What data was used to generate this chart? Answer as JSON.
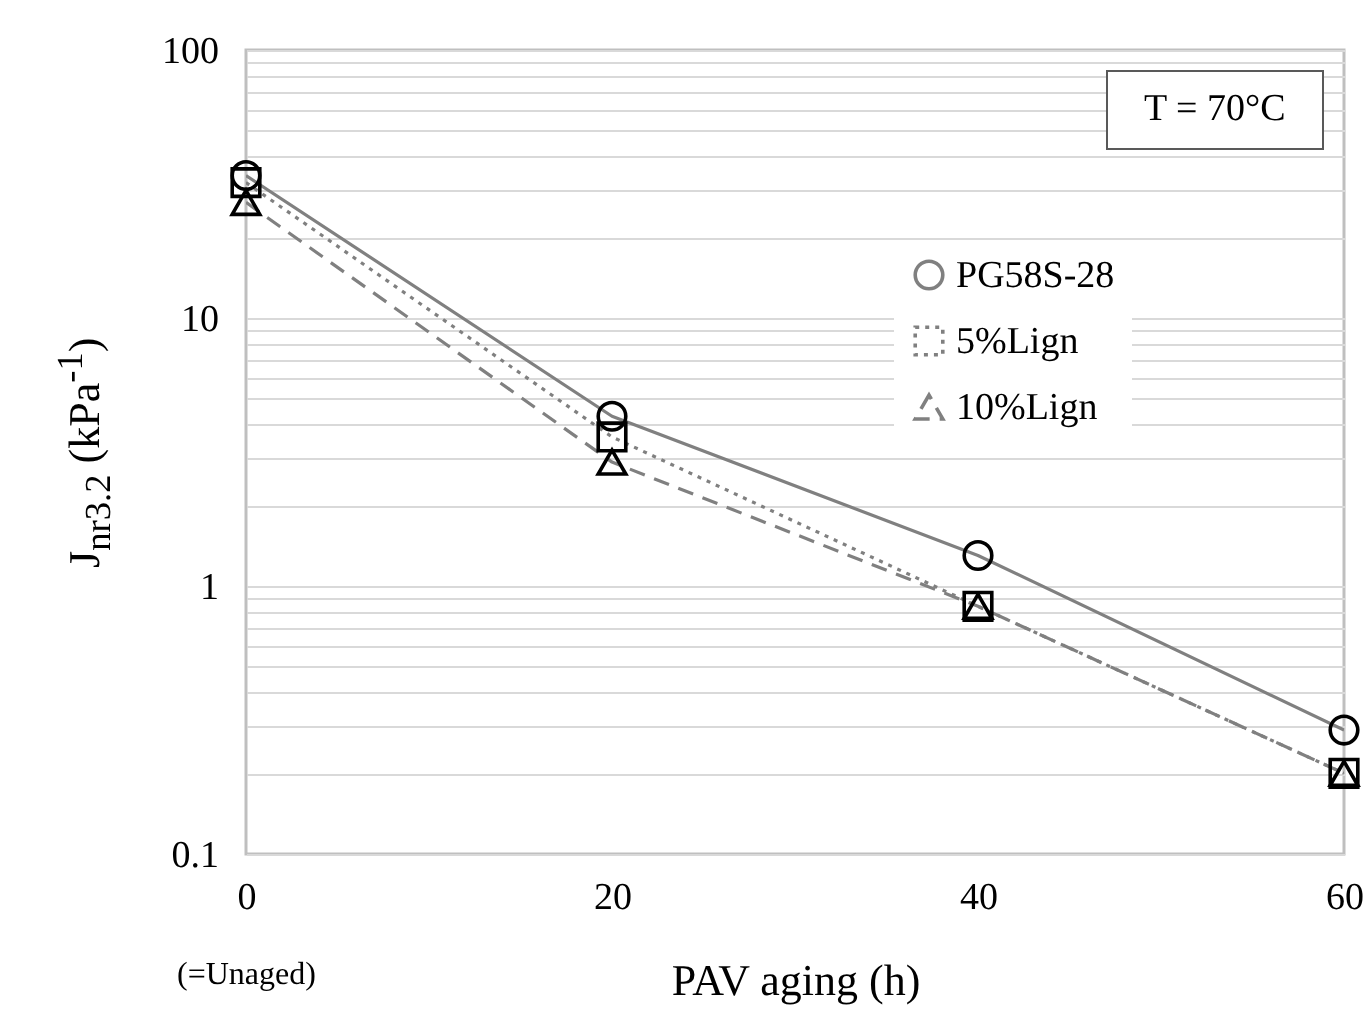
{
  "chart_data": {
    "type": "line",
    "xlabel": "PAV aging (h)",
    "ylabel": "J$_{nr3.2}$ (kPa$^{-1}$)",
    "annotations": [
      "T = 70°C",
      "(=Unaged)"
    ],
    "x": [
      0,
      20,
      40,
      60
    ],
    "series": [
      {
        "name": "PG58S-28",
        "color": "#808080",
        "marker": "circle",
        "line_style": "solid",
        "values": [
          34,
          4.3,
          1.3,
          0.29
        ]
      },
      {
        "name": "5%Lign",
        "color": "#808080",
        "marker": "square",
        "line_style": "dotted",
        "values": [
          32,
          3.6,
          0.84,
          0.2
        ]
      },
      {
        "name": "10%Lign",
        "color": "#808080",
        "marker": "triangle",
        "line_style": "dashed",
        "values": [
          27,
          2.9,
          0.84,
          0.2
        ]
      }
    ],
    "xlim": [
      0,
      60
    ],
    "xticks": [
      0,
      20,
      40,
      60
    ],
    "ylim": [
      0.1,
      100
    ],
    "yticks": [
      0.1,
      {
        "value": 0.2,
        "label": null
      },
      {
        "value": 0.3,
        "label": null
      },
      {
        "value": 0.4,
        "label": null
      },
      {
        "value": 0.5,
        "label": null
      },
      {
        "value": 0.6,
        "label": null
      },
      {
        "value": 0.7,
        "label": null
      },
      {
        "value": 0.8,
        "label": null
      },
      {
        "value": 0.9,
        "label": null
      },
      1,
      {
        "value": 2,
        "label": null
      },
      {
        "value": 3,
        "label": null
      },
      {
        "value": 4,
        "label": null
      },
      {
        "value": 5,
        "label": null
      },
      {
        "value": 6,
        "label": null
      },
      {
        "value": 7,
        "label": null
      },
      {
        "value": 8,
        "label": null
      },
      {
        "value": 9,
        "label": null
      },
      10,
      {
        "value": 20,
        "label": null
      },
      {
        "value": 30,
        "label": null
      },
      {
        "value": 40,
        "label": null
      },
      {
        "value": 50,
        "label": null
      },
      {
        "value": 60,
        "label": null
      },
      {
        "value": 70,
        "label": null
      },
      {
        "value": 80,
        "label": null
      },
      {
        "value": 90,
        "label": null
      },
      100
    ],
    "log": true,
    "grid": "y",
    "legend": "top right"
  }
}
